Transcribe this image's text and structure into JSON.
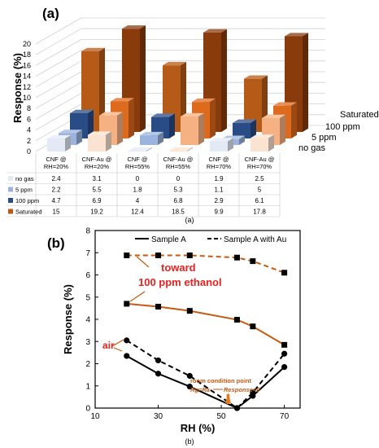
{
  "panel_a": {
    "label": "(a)",
    "caption": "(a)",
    "y_axis_label": "Response (%)",
    "y_ticks": [
      "0",
      "2",
      "4",
      "6",
      "8",
      "10",
      "12",
      "14",
      "16",
      "18",
      "20"
    ],
    "row_labels": [
      "Saturated",
      "100 ppm",
      "5 ppm",
      "no gas"
    ],
    "colors": {
      "no gas": "#e3eaf6",
      "5 ppm": "#9bb4dd",
      "100 ppm": "#2a4c86",
      "Saturated": "#b65a17"
    },
    "colors_au": {
      "no gas": "#fbe3d2",
      "5 ppm": "#f6b183",
      "100 ppm": "#de6a1e",
      "Saturated": "#8a3b0c"
    }
  },
  "panel_b": {
    "label": "(b)",
    "caption": "(b)",
    "y_axis_label": "Response (%)",
    "x_axis_label": "RH (%)",
    "legend": [
      "Sample A",
      "Sample A with Au"
    ],
    "annotations": {
      "toward_line1": "toward",
      "toward_line2": "100 ppm ethanol",
      "air": "air",
      "room1": "room condition point",
      "room2": "Rg=Ra",
      "room3": "Response=0"
    },
    "annotation_color": "#e8231f",
    "arrow_color": "#c55a11"
  },
  "chart_data": [
    {
      "type": "bar",
      "categories": [
        "CNF @ RH=20%",
        "CNF-Au @ RH=20%",
        "CNF @ RH=55%",
        "CNF-Au @ RH=55%",
        "CNF @ RH=70%",
        "CNF-Au @ RH=70%"
      ],
      "series": [
        {
          "name": "no gas",
          "values": [
            2.4,
            3.1,
            0,
            0,
            1.9,
            2.5
          ]
        },
        {
          "name": "5 ppm",
          "values": [
            2.2,
            5.5,
            1.8,
            5.3,
            1.1,
            5
          ]
        },
        {
          "name": "100 ppm",
          "values": [
            4.7,
            6.9,
            4,
            6.8,
            2.9,
            6.1
          ]
        },
        {
          "name": "Saturated",
          "values": [
            15,
            19.2,
            12.4,
            18.5,
            9.9,
            17.8
          ]
        }
      ],
      "ylabel": "Response (%)",
      "ylim": [
        0,
        20
      ],
      "grid": true
    },
    {
      "type": "line",
      "xlabel": "RH (%)",
      "ylabel": "Response (%)",
      "xlim": [
        10,
        75
      ],
      "ylim": [
        0,
        8
      ],
      "xticks": [
        10,
        30,
        50,
        70
      ],
      "yticks": [
        0,
        1,
        2,
        3,
        4,
        5,
        6,
        7,
        8
      ],
      "series": [
        {
          "name": "Sample A",
          "condition": "air",
          "style": "solid",
          "marker": "circle",
          "color": "#000000",
          "x": [
            20,
            30,
            40,
            55,
            60,
            70
          ],
          "y": [
            2.35,
            1.55,
            0.97,
            0,
            0.55,
            1.85
          ]
        },
        {
          "name": "Sample A with Au",
          "condition": "air",
          "style": "dashed",
          "marker": "circle",
          "color": "#000000",
          "x": [
            20,
            30,
            40,
            55,
            60,
            70
          ],
          "y": [
            3.05,
            2.15,
            1.45,
            0,
            0.7,
            2.45
          ]
        },
        {
          "name": "Sample A",
          "condition": "100 ppm ethanol",
          "style": "solid",
          "marker": "square",
          "color": "#c55a11",
          "x": [
            20,
            30,
            40,
            55,
            60,
            70
          ],
          "y": [
            4.7,
            4.57,
            4.38,
            3.98,
            3.68,
            2.85
          ]
        },
        {
          "name": "Sample A with Au",
          "condition": "100 ppm ethanol",
          "style": "dashed",
          "marker": "square",
          "color": "#c55a11",
          "x": [
            20,
            30,
            40,
            55,
            60,
            70
          ],
          "y": [
            6.88,
            6.88,
            6.88,
            6.78,
            6.62,
            6.1
          ]
        }
      ]
    }
  ]
}
